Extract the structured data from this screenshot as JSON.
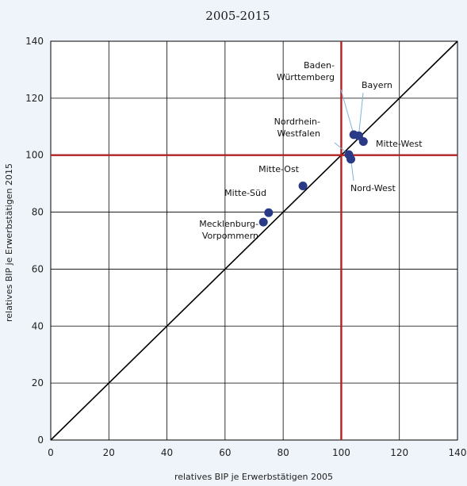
{
  "chart_data": {
    "type": "scatter",
    "title": "2005-2015",
    "xlabel": "relatives BIP je Erwerbstätigen 2005",
    "ylabel": "relatives BIP je Erwerbstätigen 2015",
    "xlim": [
      0,
      140
    ],
    "ylim": [
      0,
      140
    ],
    "xticks": [
      0,
      20,
      40,
      60,
      80,
      100,
      120,
      140
    ],
    "yticks": [
      0,
      20,
      40,
      60,
      80,
      100,
      120,
      140
    ],
    "grid": true,
    "reference_lines": {
      "diagonal": "y=x",
      "vertical_x": 100,
      "horizontal_y": 100
    },
    "colors": {
      "points": "#2b3a87",
      "reference": "#b22222",
      "diagonal": "#000000",
      "background": "#eef4fa"
    },
    "points": [
      {
        "label_lines": [
          "Baden-",
          "Württemberg"
        ],
        "x": 104.3,
        "y": 107.2
      },
      {
        "label_lines": [
          "Bayern"
        ],
        "x": 106.0,
        "y": 106.8
      },
      {
        "label_lines": [
          "Mitte-West"
        ],
        "x": 107.6,
        "y": 104.8
      },
      {
        "label_lines": [
          "Nordrhein-",
          "Westfalen"
        ],
        "x": 102.6,
        "y": 100.2
      },
      {
        "label_lines": [
          "Nord-West"
        ],
        "x": 103.3,
        "y": 98.6
      },
      {
        "label_lines": [
          "Mitte-Ost"
        ],
        "x": 86.8,
        "y": 89.2
      },
      {
        "label_lines": [
          "Mitte-Süd"
        ],
        "x": 75.0,
        "y": 79.8
      },
      {
        "label_lines": [
          "Mecklenburg-",
          "Vorpommern"
        ],
        "x": 73.2,
        "y": 76.5
      }
    ]
  }
}
